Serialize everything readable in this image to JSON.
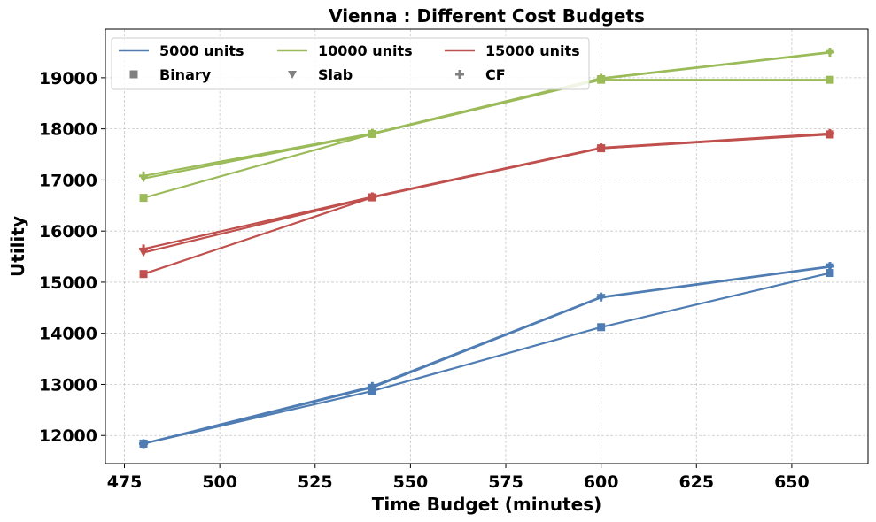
{
  "chart_data": {
    "type": "line",
    "title": "Vienna : Different Cost Budgets",
    "xlabel": "Time Budget (minutes)",
    "ylabel": "Utility",
    "xlim": [
      470,
      670
    ],
    "ylim": [
      11450,
      19950
    ],
    "xticks": [
      475,
      500,
      525,
      550,
      575,
      600,
      625,
      650
    ],
    "yticks": [
      12000,
      13000,
      14000,
      15000,
      16000,
      17000,
      18000,
      19000
    ],
    "grid": true,
    "legend_position": "top-left",
    "x": [
      480,
      540,
      600,
      660
    ],
    "budgets": [
      {
        "label": "5000 units",
        "color": "#4f7db3"
      },
      {
        "label": "10000 units",
        "color": "#9bbb59"
      },
      {
        "label": "15000 units",
        "color": "#c0504d"
      }
    ],
    "algorithms": [
      {
        "label": "Binary",
        "marker": "square"
      },
      {
        "label": "Slab",
        "marker": "triangle-down"
      },
      {
        "label": "CF",
        "marker": "plus"
      }
    ],
    "legend_marker_color": "#808080",
    "series": [
      {
        "budget": 0,
        "algorithm": 0,
        "values": [
          11840,
          12870,
          14120,
          15180
        ]
      },
      {
        "budget": 0,
        "algorithm": 1,
        "values": [
          11840,
          12940,
          14700,
          15300
        ]
      },
      {
        "budget": 0,
        "algorithm": 2,
        "values": [
          11840,
          12960,
          14710,
          15310
        ]
      },
      {
        "budget": 1,
        "algorithm": 0,
        "values": [
          16650,
          17900,
          18960,
          18960
        ]
      },
      {
        "budget": 1,
        "algorithm": 1,
        "values": [
          17030,
          17900,
          18980,
          19490
        ]
      },
      {
        "budget": 1,
        "algorithm": 2,
        "values": [
          17080,
          17910,
          18990,
          19500
        ]
      },
      {
        "budget": 2,
        "algorithm": 0,
        "values": [
          15160,
          16660,
          17620,
          17890
        ]
      },
      {
        "budget": 2,
        "algorithm": 1,
        "values": [
          15580,
          16660,
          17620,
          17900
        ]
      },
      {
        "budget": 2,
        "algorithm": 2,
        "values": [
          15650,
          16670,
          17630,
          17910
        ]
      }
    ]
  }
}
